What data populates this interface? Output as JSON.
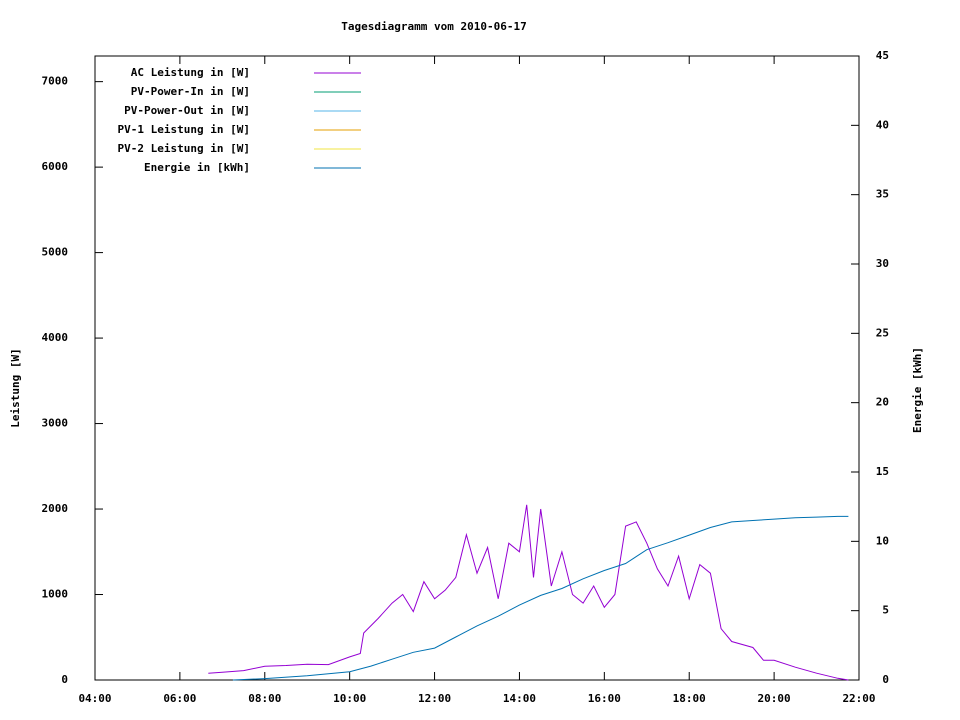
{
  "chart_data": {
    "type": "line",
    "title": "Tagesdiagramm vom 2010-06-17",
    "y_label": "Leistung [W]",
    "y2_label": "Energie [kWh]",
    "xlim": [
      4,
      22
    ],
    "xticks": [
      {
        "value": 4,
        "label": "04:00"
      },
      {
        "value": 6,
        "label": "06:00"
      },
      {
        "value": 8,
        "label": "08:00"
      },
      {
        "value": 10,
        "label": "10:00"
      },
      {
        "value": 12,
        "label": "12:00"
      },
      {
        "value": 14,
        "label": "14:00"
      },
      {
        "value": 16,
        "label": "16:00"
      },
      {
        "value": 18,
        "label": "18:00"
      },
      {
        "value": 20,
        "label": "20:00"
      },
      {
        "value": 22,
        "label": "22:00"
      }
    ],
    "ylim": [
      0,
      7300
    ],
    "yticks": [
      0,
      1000,
      2000,
      3000,
      4000,
      5000,
      6000,
      7000
    ],
    "y2lim": [
      0,
      45
    ],
    "y2ticks": [
      0,
      5,
      10,
      15,
      20,
      25,
      30,
      35,
      40,
      45
    ],
    "legend": "top-left",
    "series": [
      {
        "name": "AC Leistung in [W]",
        "color": "#9400d3",
        "x": [
          6.67,
          7,
          7.5,
          8,
          8.5,
          9,
          9.5,
          10,
          10.25,
          10.33,
          10.67,
          11,
          11.25,
          11.5,
          11.75,
          12,
          12.25,
          12.5,
          12.75,
          13,
          13.25,
          13.5,
          13.75,
          14,
          14.17,
          14.33,
          14.5,
          14.75,
          15,
          15.25,
          15.5,
          15.75,
          16,
          16.25,
          16.5,
          16.75,
          17,
          17.25,
          17.5,
          17.75,
          18,
          18.25,
          18.5,
          18.75,
          19,
          19.5,
          19.75,
          20,
          20.5,
          21,
          21.5,
          21.75
        ],
        "values": [
          80,
          90,
          110,
          160,
          170,
          185,
          180,
          270,
          310,
          550,
          720,
          900,
          1000,
          800,
          1150,
          950,
          1050,
          1200,
          1700,
          1250,
          1550,
          950,
          1600,
          1500,
          2050,
          1200,
          2000,
          1100,
          1500,
          1000,
          900,
          1100,
          850,
          1000,
          1800,
          1850,
          1600,
          1300,
          1100,
          1450,
          950,
          1350,
          1250,
          600,
          450,
          380,
          230,
          230,
          150,
          80,
          20,
          0
        ]
      },
      {
        "name": "PV-Power-In in [W]",
        "color": "#009e73",
        "x": [],
        "values": []
      },
      {
        "name": "PV-Power-Out in [W]",
        "color": "#56b4e9",
        "x": [],
        "values": []
      },
      {
        "name": "PV-1 Leistung in [W]",
        "color": "#e69f00",
        "x": [],
        "values": []
      },
      {
        "name": "PV-2 Leistung in [W]",
        "color": "#f0e442",
        "x": [],
        "values": []
      },
      {
        "name": "Energie in [kWh]",
        "color": "#0072b2",
        "axis": "y2",
        "x": [
          7.25,
          8,
          9,
          10,
          10.5,
          11,
          11.5,
          12,
          12.5,
          13,
          13.5,
          14,
          14.5,
          15,
          15.5,
          16,
          16.5,
          17,
          17.5,
          18,
          18.5,
          19,
          19.5,
          20,
          20.5,
          21,
          21.5,
          21.75
        ],
        "values": [
          0,
          0.1,
          0.3,
          0.6,
          1.0,
          1.5,
          2.0,
          2.3,
          3.1,
          3.9,
          4.6,
          5.4,
          6.1,
          6.6,
          7.3,
          7.9,
          8.4,
          9.4,
          9.9,
          10.45,
          11.0,
          11.4,
          11.5,
          11.6,
          11.7,
          11.75,
          11.8,
          11.8
        ]
      }
    ]
  }
}
